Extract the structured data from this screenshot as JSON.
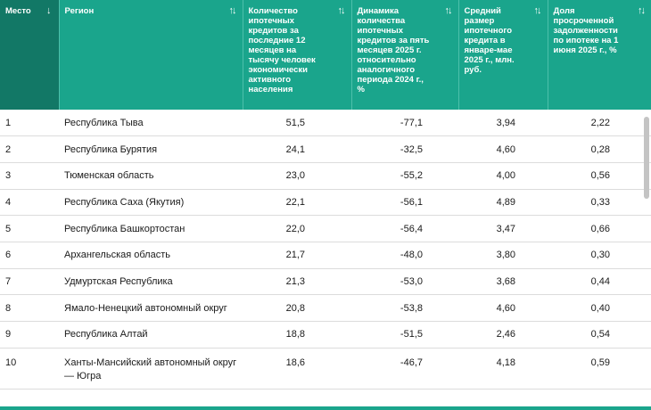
{
  "columns": [
    {
      "label": "Место",
      "sort_icon": "↓"
    },
    {
      "label": "Регион",
      "sort_icon": "↑↓"
    },
    {
      "label": "Количество ипотечных кредитов за последние 12 месяцев на тысячу человек экономически активного населения",
      "sort_icon": "↑↓"
    },
    {
      "label": "Динамика количества ипотечных кредитов за пять месяцев 2025 г. относительно аналогичного периода 2024 г., %",
      "sort_icon": "↑↓"
    },
    {
      "label": "Средний размер ипотечного кредита в январе-мае 2025 г., млн. руб.",
      "sort_icon": "↑↓"
    },
    {
      "label": "Доля просроченной задолженности по ипотеке на 1 июня 2025 г., %",
      "sort_icon": "↑↓"
    }
  ],
  "rows": [
    [
      "1",
      "Республика Тыва",
      "51,5",
      "-77,1",
      "3,94",
      "2,22"
    ],
    [
      "2",
      "Республика Бурятия",
      "24,1",
      "-32,5",
      "4,60",
      "0,28"
    ],
    [
      "3",
      "Тюменская область",
      "23,0",
      "-55,2",
      "4,00",
      "0,56"
    ],
    [
      "4",
      "Республика Саха (Якутия)",
      "22,1",
      "-56,1",
      "4,89",
      "0,33"
    ],
    [
      "5",
      "Республика Башкортостан",
      "22,0",
      "-56,4",
      "3,47",
      "0,66"
    ],
    [
      "6",
      "Архангельская область",
      "21,7",
      "-48,0",
      "3,80",
      "0,30"
    ],
    [
      "7",
      "Удмуртская Республика",
      "21,3",
      "-53,0",
      "3,68",
      "0,44"
    ],
    [
      "8",
      "Ямало-Ненецкий автономный округ",
      "20,8",
      "-53,8",
      "4,60",
      "0,40"
    ],
    [
      "9",
      "Республика Алтай",
      "18,8",
      "-51,5",
      "2,46",
      "0,54"
    ],
    [
      "10",
      "Ханты-Мансийский автономный округ — Югра",
      "18,6",
      "-46,7",
      "4,18",
      "0,59"
    ]
  ],
  "colors": {
    "header": "#1aa58c",
    "header_sorted": "#127866",
    "row_border": "#dcdcdc"
  }
}
